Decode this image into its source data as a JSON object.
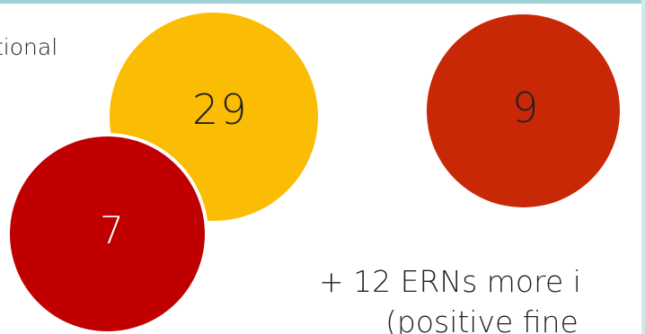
{
  "labels": {
    "partial_top_left": "tional",
    "bottom_line_1": "+ 12 ERNs more i",
    "bottom_line_2": "(positive fine"
  },
  "circles": [
    {
      "id": "yellow",
      "value": "29",
      "color": "#fbbc04"
    },
    {
      "id": "red",
      "value": "7",
      "color": "#c00000"
    },
    {
      "id": "orange",
      "value": "9",
      "color": "#c82806"
    }
  ],
  "colors": {
    "accent_border": "#9fd0d6",
    "text": "#222222"
  }
}
